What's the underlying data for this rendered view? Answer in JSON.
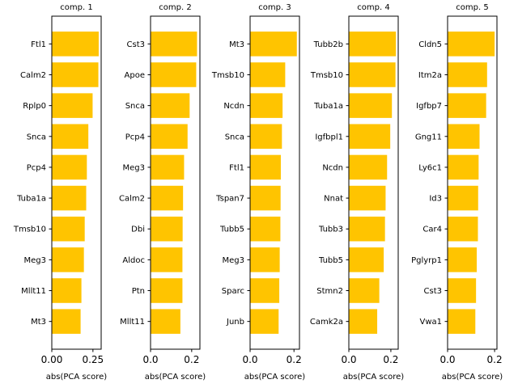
{
  "colors": {
    "bar": "#FFC400",
    "axis": "#000000"
  },
  "chart_data": [
    {
      "type": "bar",
      "orientation": "horizontal",
      "title": "comp. 1",
      "xlabel": "abs(PCA score)",
      "xlim": [
        0,
        0.3
      ],
      "xticks": [
        0.0,
        0.25
      ],
      "xtick_labels": [
        "0.00",
        "0.25"
      ],
      "categories": [
        "Ftl1",
        "Calm2",
        "Rplp0",
        "Snca",
        "Pcp4",
        "Tuba1a",
        "Tmsb10",
        "Meg3",
        "Mllt11",
        "Mt3"
      ],
      "values": [
        0.285,
        0.283,
        0.248,
        0.222,
        0.213,
        0.209,
        0.2,
        0.195,
        0.18,
        0.175
      ]
    },
    {
      "type": "bar",
      "orientation": "horizontal",
      "title": "comp. 2",
      "xlabel": "abs(PCA score)",
      "xlim": [
        0,
        0.24
      ],
      "xticks": [
        0.0,
        0.2
      ],
      "xtick_labels": [
        "0.0",
        "0.2"
      ],
      "categories": [
        "Cst3",
        "Apoe",
        "Snca",
        "Pcp4",
        "Meg3",
        "Calm2",
        "Dbi",
        "Aldoc",
        "Ptn",
        "Mllt11"
      ],
      "values": [
        0.226,
        0.222,
        0.19,
        0.18,
        0.163,
        0.158,
        0.156,
        0.155,
        0.155,
        0.145
      ]
    },
    {
      "type": "bar",
      "orientation": "horizontal",
      "title": "comp. 3",
      "xlabel": "abs(PCA score)",
      "xlim": [
        0,
        0.225
      ],
      "xticks": [
        0.0,
        0.2
      ],
      "xtick_labels": [
        "0.0",
        "0.2"
      ],
      "categories": [
        "Mt3",
        "Tmsb10",
        "Ncdn",
        "Snca",
        "Ftl1",
        "Tspan7",
        "Tubb5",
        "Meg3",
        "Sparc",
        "Junb"
      ],
      "values": [
        0.213,
        0.16,
        0.148,
        0.145,
        0.14,
        0.139,
        0.138,
        0.135,
        0.133,
        0.13
      ]
    },
    {
      "type": "bar",
      "orientation": "horizontal",
      "title": "comp. 4",
      "xlabel": "abs(PCA score)",
      "xlim": [
        0,
        0.235
      ],
      "xticks": [
        0.0,
        0.2
      ],
      "xtick_labels": [
        "0.0",
        "0.2"
      ],
      "categories": [
        "Tubb2b",
        "Tmsb10",
        "Tuba1a",
        "Igfbpl1",
        "Ncdn",
        "Nnat",
        "Tubb3",
        "Tubb5",
        "Stmn2",
        "Camk2a"
      ],
      "values": [
        0.224,
        0.222,
        0.205,
        0.197,
        0.182,
        0.175,
        0.172,
        0.166,
        0.145,
        0.135
      ]
    },
    {
      "type": "bar",
      "orientation": "horizontal",
      "title": "comp. 5",
      "xlabel": "abs(PCA score)",
      "xlim": [
        0,
        0.21
      ],
      "xticks": [
        0.0,
        0.2
      ],
      "xtick_labels": [
        "0.0",
        "0.2"
      ],
      "categories": [
        "Cldn5",
        "Itm2a",
        "Igfbp7",
        "Gng11",
        "Ly6c1",
        "Id3",
        "Car4",
        "Pglyrp1",
        "Cst3",
        "Vwa1"
      ],
      "values": [
        0.2,
        0.168,
        0.164,
        0.136,
        0.132,
        0.13,
        0.129,
        0.124,
        0.121,
        0.118
      ]
    }
  ]
}
